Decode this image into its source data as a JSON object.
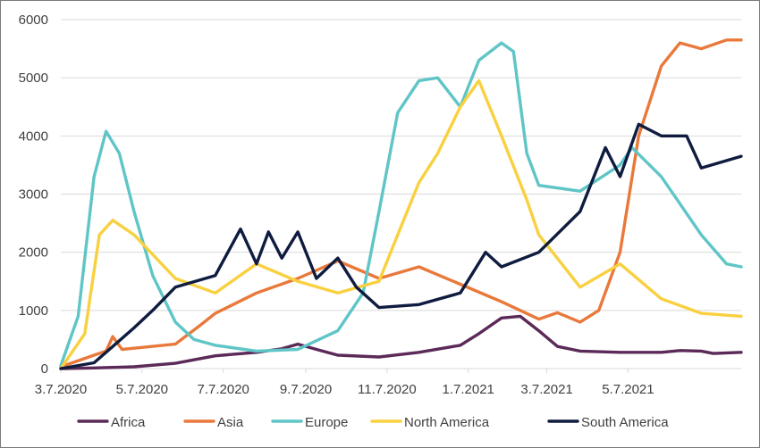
{
  "chart_data": {
    "type": "line",
    "title": "",
    "xlabel": "",
    "ylabel": "",
    "ylim": [
      0,
      6000
    ],
    "yticks": [
      0,
      1000,
      2000,
      3000,
      4000,
      5000,
      6000
    ],
    "ytick_labels": [
      "0",
      "1000",
      "2000",
      "3000",
      "4000",
      "5000",
      "6000"
    ],
    "xlim": [
      "2020-03-07",
      "2021-07-31"
    ],
    "xticks": [
      "2020-03-07",
      "2020-05-07",
      "2020-07-07",
      "2020-09-07",
      "2020-11-07",
      "2021-01-07",
      "2021-03-07",
      "2021-05-07"
    ],
    "xtick_labels": [
      "3.7.2020",
      "5.7.2020",
      "7.7.2020",
      "9.7.2020",
      "11.7.2020",
      "1.7.2021",
      "3.7.2021",
      "5.7.2021"
    ],
    "grid": "horizontal",
    "legend_position": "bottom",
    "series": [
      {
        "name": "Africa",
        "color": "#5b2a58",
        "points": [
          [
            "2020-03-07",
            0
          ],
          [
            "2020-04-01",
            10
          ],
          [
            "2020-05-01",
            30
          ],
          [
            "2020-06-01",
            90
          ],
          [
            "2020-07-01",
            220
          ],
          [
            "2020-08-01",
            280
          ],
          [
            "2020-08-20",
            340
          ],
          [
            "2020-09-01",
            420
          ],
          [
            "2020-09-15",
            330
          ],
          [
            "2020-10-01",
            230
          ],
          [
            "2020-11-01",
            200
          ],
          [
            "2020-12-01",
            280
          ],
          [
            "2021-01-01",
            400
          ],
          [
            "2021-01-15",
            600
          ],
          [
            "2021-02-01",
            870
          ],
          [
            "2021-02-15",
            900
          ],
          [
            "2021-03-01",
            650
          ],
          [
            "2021-03-15",
            380
          ],
          [
            "2021-04-01",
            300
          ],
          [
            "2021-05-01",
            280
          ],
          [
            "2021-06-01",
            280
          ],
          [
            "2021-06-15",
            310
          ],
          [
            "2021-07-01",
            300
          ],
          [
            "2021-07-10",
            260
          ],
          [
            "2021-07-31",
            280
          ]
        ]
      },
      {
        "name": "Asia",
        "color": "#e9793b",
        "points": [
          [
            "2020-03-07",
            30
          ],
          [
            "2020-04-01",
            230
          ],
          [
            "2020-04-10",
            300
          ],
          [
            "2020-04-15",
            550
          ],
          [
            "2020-04-22",
            330
          ],
          [
            "2020-05-01",
            350
          ],
          [
            "2020-06-01",
            420
          ],
          [
            "2020-06-20",
            750
          ],
          [
            "2020-07-01",
            950
          ],
          [
            "2020-08-01",
            1300
          ],
          [
            "2020-09-01",
            1550
          ],
          [
            "2020-10-01",
            1850
          ],
          [
            "2020-11-01",
            1550
          ],
          [
            "2020-12-01",
            1750
          ],
          [
            "2021-01-01",
            1450
          ],
          [
            "2021-02-01",
            1150
          ],
          [
            "2021-03-01",
            850
          ],
          [
            "2021-03-15",
            960
          ],
          [
            "2021-04-01",
            800
          ],
          [
            "2021-04-15",
            1000
          ],
          [
            "2021-05-01",
            2000
          ],
          [
            "2021-05-15",
            4000
          ],
          [
            "2021-06-01",
            5200
          ],
          [
            "2021-06-15",
            5600
          ],
          [
            "2021-07-01",
            5500
          ],
          [
            "2021-07-20",
            5650
          ],
          [
            "2021-07-31",
            5650
          ]
        ]
      },
      {
        "name": "Europe",
        "color": "#5fc5c7",
        "points": [
          [
            "2020-03-07",
            50
          ],
          [
            "2020-03-20",
            900
          ],
          [
            "2020-04-01",
            3300
          ],
          [
            "2020-04-10",
            4080
          ],
          [
            "2020-04-20",
            3700
          ],
          [
            "2020-05-01",
            2700
          ],
          [
            "2020-05-15",
            1600
          ],
          [
            "2020-06-01",
            800
          ],
          [
            "2020-06-15",
            500
          ],
          [
            "2020-07-01",
            400
          ],
          [
            "2020-08-01",
            300
          ],
          [
            "2020-09-01",
            330
          ],
          [
            "2020-10-01",
            650
          ],
          [
            "2020-10-20",
            1300
          ],
          [
            "2020-11-01",
            2700
          ],
          [
            "2020-11-15",
            4400
          ],
          [
            "2020-12-01",
            4950
          ],
          [
            "2020-12-15",
            5000
          ],
          [
            "2021-01-01",
            4500
          ],
          [
            "2021-01-15",
            5300
          ],
          [
            "2021-02-01",
            5600
          ],
          [
            "2021-02-10",
            5450
          ],
          [
            "2021-02-20",
            3700
          ],
          [
            "2021-03-01",
            3150
          ],
          [
            "2021-04-01",
            3050
          ],
          [
            "2021-05-01",
            3500
          ],
          [
            "2021-05-10",
            3800
          ],
          [
            "2021-06-01",
            3300
          ],
          [
            "2021-07-01",
            2300
          ],
          [
            "2021-07-20",
            1800
          ],
          [
            "2021-07-31",
            1750
          ]
        ]
      },
      {
        "name": "North America",
        "color": "#f9d03f",
        "points": [
          [
            "2020-03-07",
            0
          ],
          [
            "2020-03-25",
            600
          ],
          [
            "2020-04-05",
            2300
          ],
          [
            "2020-04-15",
            2550
          ],
          [
            "2020-05-01",
            2300
          ],
          [
            "2020-06-01",
            1550
          ],
          [
            "2020-07-01",
            1300
          ],
          [
            "2020-08-01",
            1800
          ],
          [
            "2020-09-01",
            1500
          ],
          [
            "2020-10-01",
            1300
          ],
          [
            "2020-11-01",
            1500
          ],
          [
            "2020-11-15",
            2300
          ],
          [
            "2020-12-01",
            3200
          ],
          [
            "2020-12-15",
            3700
          ],
          [
            "2021-01-01",
            4500
          ],
          [
            "2021-01-15",
            4950
          ],
          [
            "2021-02-01",
            4000
          ],
          [
            "2021-02-20",
            2900
          ],
          [
            "2021-03-01",
            2300
          ],
          [
            "2021-04-01",
            1400
          ],
          [
            "2021-05-01",
            1800
          ],
          [
            "2021-06-01",
            1200
          ],
          [
            "2021-07-01",
            950
          ],
          [
            "2021-07-31",
            900
          ]
        ]
      },
      {
        "name": "South America",
        "color": "#0f1c3f",
        "points": [
          [
            "2020-03-07",
            0
          ],
          [
            "2020-04-01",
            100
          ],
          [
            "2020-05-01",
            700
          ],
          [
            "2020-05-15",
            1000
          ],
          [
            "2020-06-01",
            1400
          ],
          [
            "2020-07-01",
            1600
          ],
          [
            "2020-07-20",
            2400
          ],
          [
            "2020-08-01",
            1800
          ],
          [
            "2020-08-10",
            2350
          ],
          [
            "2020-08-20",
            1900
          ],
          [
            "2020-09-01",
            2350
          ],
          [
            "2020-09-15",
            1550
          ],
          [
            "2020-10-01",
            1900
          ],
          [
            "2020-10-15",
            1400
          ],
          [
            "2020-11-01",
            1050
          ],
          [
            "2020-12-01",
            1100
          ],
          [
            "2021-01-01",
            1300
          ],
          [
            "2021-01-20",
            2000
          ],
          [
            "2021-02-01",
            1750
          ],
          [
            "2021-03-01",
            2000
          ],
          [
            "2021-04-01",
            2700
          ],
          [
            "2021-04-20",
            3800
          ],
          [
            "2021-05-01",
            3300
          ],
          [
            "2021-05-15",
            4200
          ],
          [
            "2021-06-01",
            4000
          ],
          [
            "2021-06-20",
            4000
          ],
          [
            "2021-07-01",
            3450
          ],
          [
            "2021-07-31",
            3650
          ]
        ]
      }
    ]
  }
}
